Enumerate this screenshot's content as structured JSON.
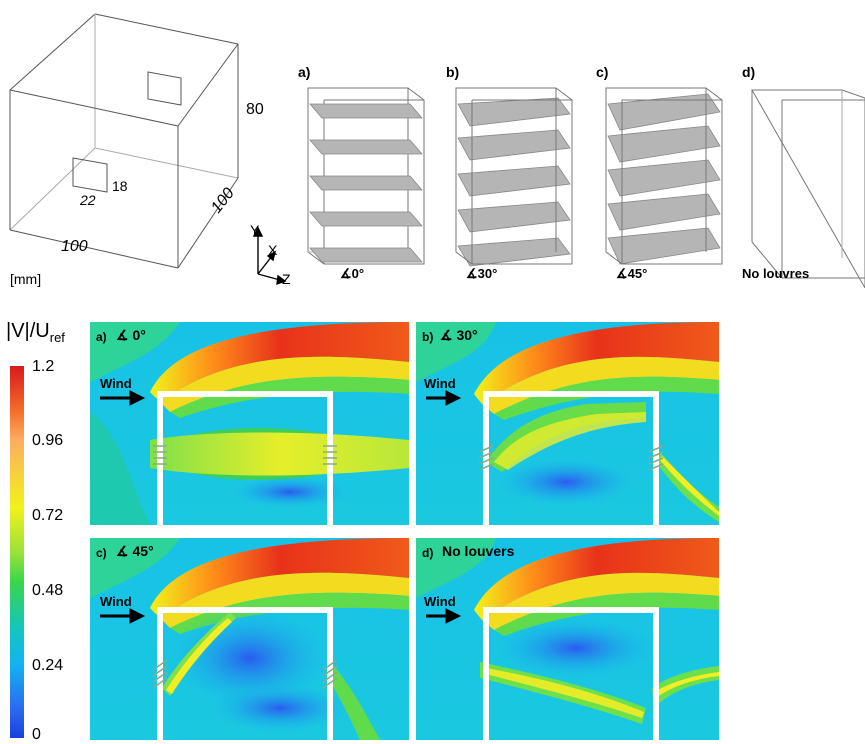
{
  "schematic": {
    "dim_height": "80",
    "dim_depth": "100",
    "dim_width": "100",
    "dim_opening_w": "22",
    "dim_opening_h": "18",
    "unit": "[mm]",
    "axes": {
      "y": "Y",
      "x": "X",
      "z": "Z"
    }
  },
  "louvre_configs": [
    {
      "letter": "a)",
      "caption": "0°"
    },
    {
      "letter": "b)",
      "caption": "30°"
    },
    {
      "letter": "c)",
      "caption": "45°"
    },
    {
      "letter": "d)",
      "caption": "No louvres"
    }
  ],
  "colorbar": {
    "title_main": "|V|/U",
    "title_sub": "ref",
    "ticks": [
      "1.2",
      "0.96",
      "0.72",
      "0.48",
      "0.24",
      "0"
    ],
    "colors": [
      "#d7191c",
      "#fdae61",
      "#f2f21a",
      "#39d64a",
      "#12b4f0",
      "#1a3fe0"
    ]
  },
  "flow_panels": [
    {
      "letter": "a)",
      "caption": "0°",
      "wind": "Wind"
    },
    {
      "letter": "b)",
      "caption": "30°",
      "wind": "Wind"
    },
    {
      "letter": "c)",
      "caption": "45°",
      "wind": "Wind"
    },
    {
      "letter": "d)",
      "caption": "No louvers",
      "wind": "Wind"
    }
  ]
}
